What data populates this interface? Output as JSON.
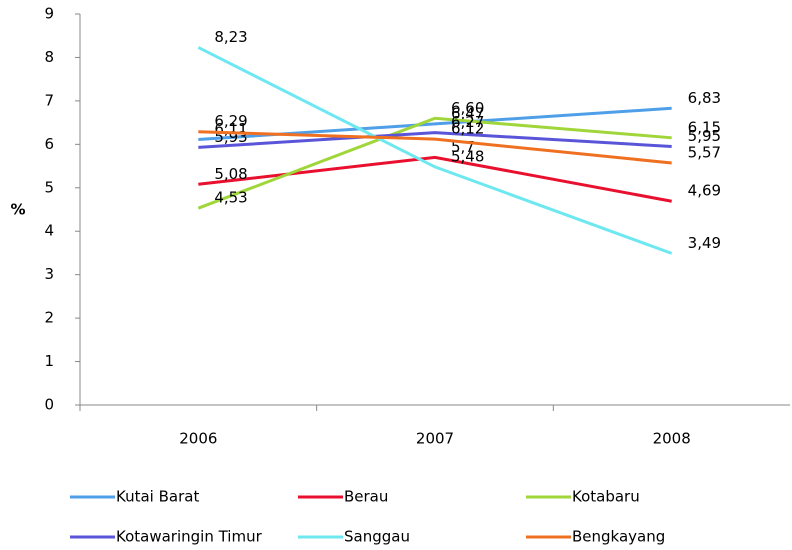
{
  "chart_data": {
    "type": "line",
    "y_label": "%",
    "x": [
      "2006",
      "2007",
      "2008"
    ],
    "ylim": [
      0,
      9
    ],
    "yticks": [
      0,
      1,
      2,
      3,
      4,
      5,
      6,
      7,
      8,
      9
    ],
    "grid": false,
    "legend": "bottom",
    "series": [
      {
        "name": "Kutai Barat",
        "color": "#4f9fe8",
        "values": [
          6.11,
          6.47,
          6.83
        ],
        "value_labels": [
          "6,11",
          "6,47",
          "6,83"
        ]
      },
      {
        "name": "Berau",
        "color": "#e8102e",
        "values": [
          5.08,
          5.7,
          4.69
        ],
        "value_labels": [
          "5,08",
          "5,7",
          "4,69"
        ]
      },
      {
        "name": "Kotabaru",
        "color": "#a0d63a",
        "values": [
          4.53,
          6.6,
          6.15
        ],
        "value_labels": [
          "4,53",
          "6,60",
          "6,15"
        ]
      },
      {
        "name": "Kotawaringin Timur",
        "color": "#5a55d8",
        "values": [
          5.93,
          6.27,
          5.95
        ],
        "value_labels": [
          "5,93",
          "6,27",
          "5,95"
        ]
      },
      {
        "name": "Sanggau",
        "color": "#6ee8f0",
        "values": [
          8.23,
          5.48,
          3.49
        ],
        "value_labels": [
          "8,23",
          "5,48",
          "3,49"
        ]
      },
      {
        "name": "Bengkayang",
        "color": "#f07022",
        "values": [
          6.29,
          6.12,
          5.57
        ],
        "value_labels": [
          "6,29",
          "6,12",
          "5,57"
        ]
      }
    ]
  }
}
